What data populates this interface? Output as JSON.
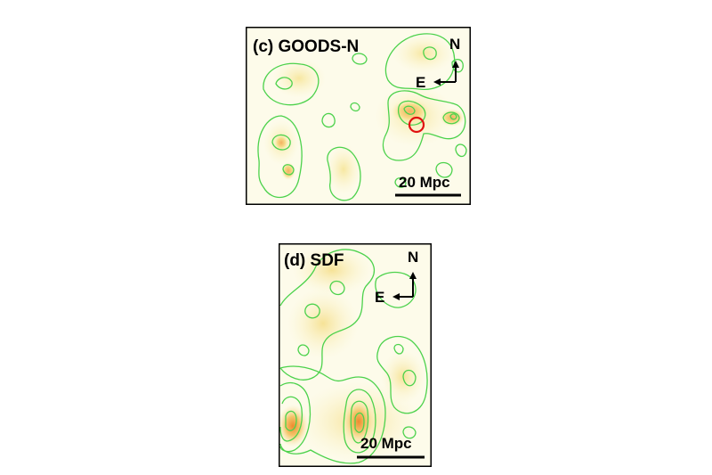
{
  "panels": [
    {
      "id": "c",
      "title": "(c) GOODS-N",
      "north_label": "N",
      "east_label": "E",
      "scale_label": "20 Mpc",
      "marker": "red-circle"
    },
    {
      "id": "d",
      "title": "(d) SDF",
      "north_label": "N",
      "east_label": "E",
      "scale_label": "20 Mpc"
    }
  ],
  "colors": {
    "contour": "#4cd24c",
    "background_tint": "#fcf8da",
    "peak": "#f29a3a",
    "marker": "#e01010",
    "frame": "#000000"
  }
}
